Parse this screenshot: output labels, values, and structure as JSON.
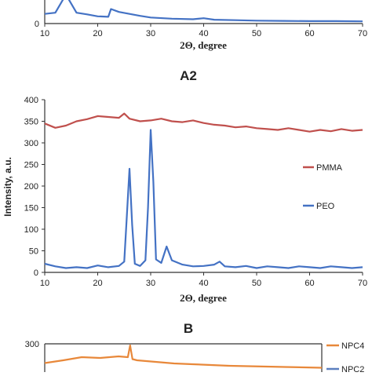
{
  "panels": {
    "a1": {
      "xlabel": "2Θ, degree",
      "x_ticks": [
        "10",
        "20",
        "30",
        "40",
        "50",
        "60",
        "70"
      ],
      "y_ticks": [
        "0"
      ]
    },
    "a2_label": "A2",
    "b_label": "B"
  },
  "chart_data": [
    {
      "type": "line",
      "panel": "A1 (partial, top cropped)",
      "xlabel": "2Θ, degree",
      "xlim": [
        10,
        70
      ],
      "series": [
        {
          "color": "#4472c4",
          "x": [
            10,
            12,
            14,
            16,
            18,
            20,
            22,
            22.5,
            24,
            26,
            28,
            30,
            34,
            38,
            40,
            42,
            46,
            50,
            55,
            60,
            65,
            70
          ],
          "values": [
            40,
            45,
            120,
            45,
            38,
            30,
            28,
            60,
            48,
            40,
            32,
            25,
            20,
            18,
            22,
            16,
            14,
            12,
            11,
            10,
            10,
            9
          ]
        }
      ]
    },
    {
      "type": "line",
      "panel": "A2",
      "title": "A2",
      "xlabel": "2Θ, degree",
      "ylabel": "Intensity, a.u.",
      "xlim": [
        10,
        70
      ],
      "ylim": [
        0,
        400
      ],
      "x_ticks": [
        10,
        20,
        30,
        40,
        50,
        60,
        70
      ],
      "y_ticks": [
        0,
        50,
        100,
        150,
        200,
        250,
        300,
        350,
        400
      ],
      "legend_position": "right",
      "series": [
        {
          "name": "PMMA",
          "color": "#c0504d",
          "x": [
            10,
            12,
            14,
            16,
            18,
            20,
            22,
            24,
            25,
            26,
            28,
            30,
            32,
            34,
            36,
            38,
            40,
            42,
            44,
            46,
            48,
            50,
            52,
            54,
            56,
            58,
            60,
            62,
            64,
            66,
            68,
            70
          ],
          "values": [
            345,
            335,
            340,
            350,
            355,
            362,
            360,
            358,
            368,
            356,
            350,
            352,
            356,
            350,
            348,
            352,
            346,
            342,
            340,
            336,
            338,
            334,
            332,
            330,
            334,
            330,
            326,
            330,
            327,
            332,
            328,
            330
          ]
        },
        {
          "name": "PEO",
          "color": "#4472c4",
          "x": [
            10,
            12,
            14,
            16,
            18,
            20,
            22,
            24,
            25,
            25.5,
            26,
            26.5,
            27,
            28,
            29,
            29.5,
            30,
            30.5,
            31,
            32,
            33,
            34,
            36,
            38,
            40,
            42,
            43,
            44,
            46,
            48,
            50,
            52,
            54,
            56,
            58,
            60,
            62,
            64,
            66,
            68,
            70
          ],
          "values": [
            20,
            14,
            10,
            12,
            10,
            16,
            12,
            15,
            25,
            130,
            240,
            110,
            20,
            15,
            28,
            150,
            330,
            210,
            30,
            22,
            60,
            28,
            18,
            14,
            15,
            18,
            25,
            14,
            12,
            15,
            10,
            14,
            12,
            10,
            14,
            12,
            10,
            14,
            12,
            10,
            12
          ]
        }
      ]
    },
    {
      "type": "line",
      "panel": "B (partial, bottom cropped)",
      "title": "B",
      "xlim": [
        10,
        70
      ],
      "y_ticks": [
        300
      ],
      "legend_position": "right",
      "series": [
        {
          "name": "NPC4",
          "color": "#e8883a",
          "x": [
            10,
            14,
            18,
            22,
            26,
            28,
            28.5,
            29,
            30,
            34,
            38,
            42,
            46,
            50,
            54,
            58,
            62,
            66,
            70
          ],
          "values": [
            255,
            262,
            270,
            268,
            272,
            270,
            300,
            265,
            262,
            258,
            254,
            252,
            250,
            248,
            247,
            246,
            245,
            244,
            243
          ]
        },
        {
          "name": "NPC2",
          "color": "#5b7fbf",
          "x": [],
          "values": []
        }
      ]
    }
  ]
}
